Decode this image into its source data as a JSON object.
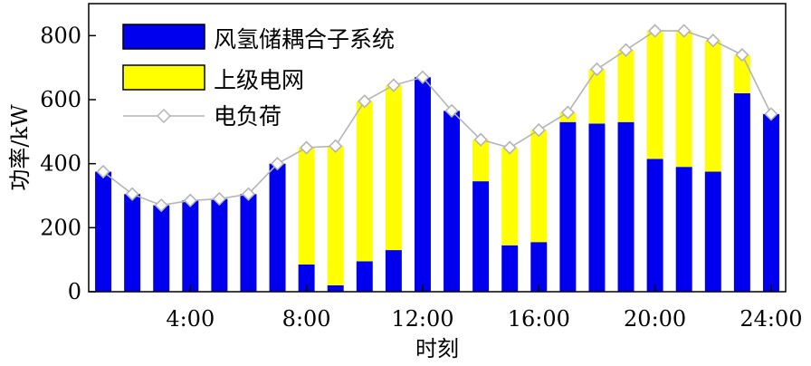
{
  "chart_data": {
    "type": "bar",
    "stacked": true,
    "title": "",
    "xlabel": "时刻",
    "ylabel": "功率/kW",
    "ylim": [
      0,
      900
    ],
    "xlim": [
      0.5,
      24.5
    ],
    "x": [
      1,
      2,
      3,
      4,
      5,
      6,
      7,
      8,
      9,
      10,
      11,
      12,
      13,
      14,
      15,
      16,
      17,
      18,
      19,
      20,
      21,
      22,
      23,
      24
    ],
    "x_ticks": [
      4,
      8,
      12,
      16,
      20,
      24
    ],
    "x_tick_labels": [
      "4:00",
      "8:00",
      "12:00",
      "16:00",
      "20:00",
      "24:00"
    ],
    "y_ticks": [
      0,
      200,
      400,
      600,
      800
    ],
    "y_tick_labels": [
      "0",
      "200",
      "400",
      "600",
      "800"
    ],
    "grid": false,
    "legend_position": "top-left",
    "series": [
      {
        "name": "风氢储耦合子系统",
        "kind": "bar",
        "color": "#0000ee",
        "values": [
          375,
          305,
          270,
          285,
          290,
          305,
          400,
          85,
          20,
          95,
          130,
          670,
          565,
          345,
          145,
          155,
          530,
          525,
          530,
          415,
          390,
          375,
          620,
          555
        ]
      },
      {
        "name": "上级电网",
        "kind": "bar",
        "color": "#ffff00",
        "values": [
          0,
          0,
          0,
          0,
          0,
          0,
          0,
          365,
          435,
          500,
          515,
          0,
          0,
          130,
          305,
          350,
          30,
          170,
          225,
          400,
          425,
          410,
          120,
          0
        ]
      },
      {
        "name": "电负荷",
        "kind": "line",
        "color": "#b4b4b4",
        "marker": "diamond",
        "values": [
          375,
          305,
          270,
          285,
          290,
          305,
          400,
          450,
          455,
          595,
          645,
          670,
          565,
          475,
          450,
          505,
          560,
          695,
          755,
          815,
          815,
          785,
          740,
          555
        ]
      }
    ]
  }
}
